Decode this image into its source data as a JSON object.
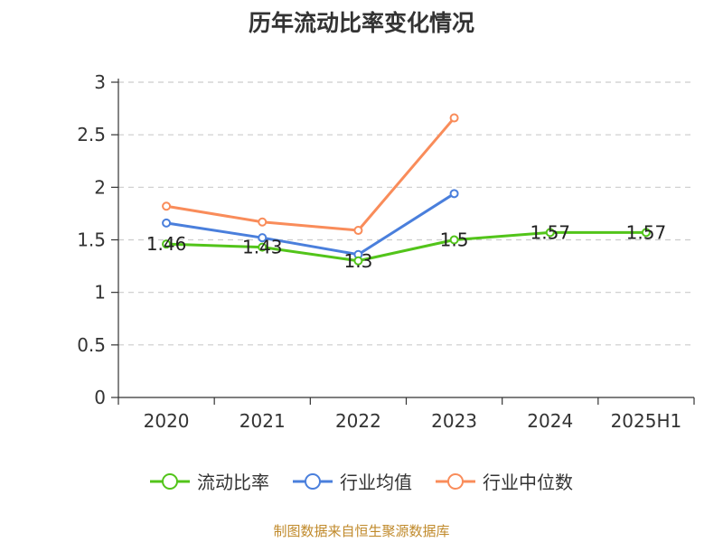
{
  "chart_data": {
    "type": "line",
    "title": "历年流动比率变化情况",
    "xlabel": "",
    "ylabel": "",
    "categories": [
      "2020",
      "2021",
      "2022",
      "2023",
      "2024",
      "2025H1"
    ],
    "ylim": [
      0,
      3
    ],
    "yticks": [
      "0",
      "0.5",
      "1",
      "1.5",
      "2",
      "2.5",
      "3"
    ],
    "grid": true,
    "legend_position": "bottom",
    "series": [
      {
        "name": "流动比率",
        "color": "#52c41a",
        "values": [
          1.46,
          1.43,
          1.3,
          1.5,
          1.57,
          1.57
        ],
        "labels": [
          "1.46",
          "1.43",
          "1.3",
          "1.5",
          "1.57",
          "1.57"
        ]
      },
      {
        "name": "行业均值",
        "color": "#4a7fdc",
        "values": [
          1.66,
          1.52,
          1.36,
          1.94,
          null,
          null
        ]
      },
      {
        "name": "行业中位数",
        "color": "#f98c5a",
        "values": [
          1.82,
          1.67,
          1.59,
          2.66,
          null,
          null
        ]
      }
    ]
  },
  "footer": {
    "source": "制图数据来自恒生聚源数据库"
  }
}
